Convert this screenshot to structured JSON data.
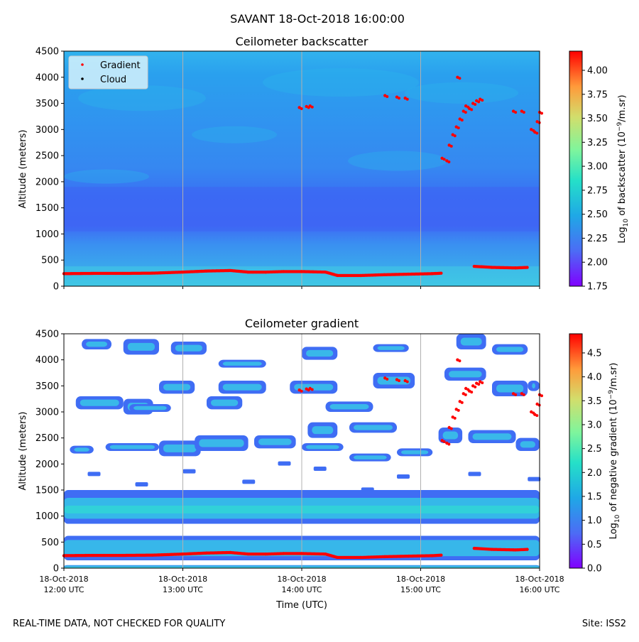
{
  "page": {
    "title": "SAVANT 18-Oct-2018 16:00:00",
    "footer_left": "REAL-TIME DATA, NOT CHECKED FOR QUALITY",
    "footer_right": "Site: ISS2"
  },
  "colors": {
    "background_field": "#3aa0ef",
    "low_band": "#3b6cf4",
    "surface_band": "#43c3e8",
    "gradient_points": "#ff0000",
    "cloud_points": "#000000"
  },
  "legend": {
    "position": "top-left",
    "entries": [
      "Gradient",
      "Cloud"
    ]
  },
  "chart_data": [
    {
      "type": "heatmap",
      "title": "Ceilometer backscatter",
      "xlabel": "",
      "ylabel": "Altitude (meters)",
      "xlim": [
        "18-Oct-2018 12:00",
        "18-Oct-2018 16:00"
      ],
      "ylim": [
        0,
        4500
      ],
      "x_ticks": [
        "",
        "",
        "",
        "",
        ""
      ],
      "y_ticks": [
        0,
        500,
        1000,
        1500,
        2000,
        2500,
        3000,
        3500,
        4000,
        4500
      ],
      "grid": "vertical",
      "colorbar": {
        "label_prefix": "Log",
        "label_sub": "10",
        "label_mid": " of backscatter (10",
        "label_sup": "−9",
        "label_suffix": "/m.sr)",
        "range": [
          1.75,
          4.2
        ],
        "ticks": [
          "1.75",
          "2.00",
          "2.25",
          "2.50",
          "2.75",
          "3.00",
          "3.25",
          "3.50",
          "3.75",
          "4.00"
        ]
      }
    },
    {
      "type": "heatmap",
      "title": "Ceilometer gradient",
      "xlabel": "Time (UTC)",
      "ylabel": "Altitude (meters)",
      "xlim": [
        "18-Oct-2018 12:00",
        "18-Oct-2018 16:00"
      ],
      "ylim": [
        0,
        4500
      ],
      "x_ticks": [
        {
          "date": "18-Oct-2018",
          "time": "12:00 UTC"
        },
        {
          "date": "18-Oct-2018",
          "time": "13:00 UTC"
        },
        {
          "date": "18-Oct-2018",
          "time": "14:00 UTC"
        },
        {
          "date": "18-Oct-2018",
          "time": "15:00 UTC"
        },
        {
          "date": "18-Oct-2018",
          "time": "16:00 UTC"
        }
      ],
      "y_ticks": [
        0,
        500,
        1000,
        1500,
        2000,
        2500,
        3000,
        3500,
        4000,
        4500
      ],
      "grid": "vertical",
      "colorbar": {
        "label_prefix": "Log",
        "label_sub": "10",
        "label_mid": " of negative gradient (10",
        "label_sup": "−9",
        "label_suffix": "/m.sr)",
        "range": [
          0.0,
          4.9
        ],
        "ticks": [
          "0.0",
          "0.5",
          "1.0",
          "1.5",
          "2.0",
          "2.5",
          "3.0",
          "3.5",
          "4.0",
          "4.5"
        ]
      }
    }
  ],
  "gradient_series": {
    "name": "Gradient",
    "time_hours": [
      12.0,
      12.25,
      12.5,
      12.75,
      13.0,
      13.2,
      13.4,
      13.55,
      13.7,
      13.85,
      14.0,
      14.2,
      14.3,
      14.5,
      14.7,
      14.9,
      15.1,
      15.18
    ],
    "altitude_m": [
      240,
      245,
      245,
      250,
      270,
      290,
      300,
      270,
      270,
      280,
      280,
      270,
      205,
      205,
      220,
      230,
      240,
      250
    ],
    "second_segment_time": [
      15.45,
      15.6,
      15.8,
      15.9
    ],
    "second_segment_alt": [
      380,
      360,
      350,
      360
    ],
    "elevated": [
      {
        "t": 13.98,
        "a": 3420
      },
      {
        "t": 14.04,
        "a": 3440
      },
      {
        "t": 14.07,
        "a": 3450
      },
      {
        "t": 14.7,
        "a": 3650
      },
      {
        "t": 14.8,
        "a": 3620
      },
      {
        "t": 14.87,
        "a": 3600
      },
      {
        "t": 15.18,
        "a": 2450
      },
      {
        "t": 15.22,
        "a": 2400
      },
      {
        "t": 15.24,
        "a": 2700
      },
      {
        "t": 15.27,
        "a": 2900
      },
      {
        "t": 15.3,
        "a": 3050
      },
      {
        "t": 15.33,
        "a": 3200
      },
      {
        "t": 15.36,
        "a": 3350
      },
      {
        "t": 15.38,
        "a": 3450
      },
      {
        "t": 15.41,
        "a": 3400
      },
      {
        "t": 15.44,
        "a": 3500
      },
      {
        "t": 15.47,
        "a": 3550
      },
      {
        "t": 15.5,
        "a": 3580
      },
      {
        "t": 15.31,
        "a": 4000
      },
      {
        "t": 15.78,
        "a": 3350
      },
      {
        "t": 15.85,
        "a": 3350
      },
      {
        "t": 15.93,
        "a": 3000
      },
      {
        "t": 15.96,
        "a": 2950
      },
      {
        "t": 15.98,
        "a": 3150
      },
      {
        "t": 16.0,
        "a": 3330
      }
    ]
  }
}
